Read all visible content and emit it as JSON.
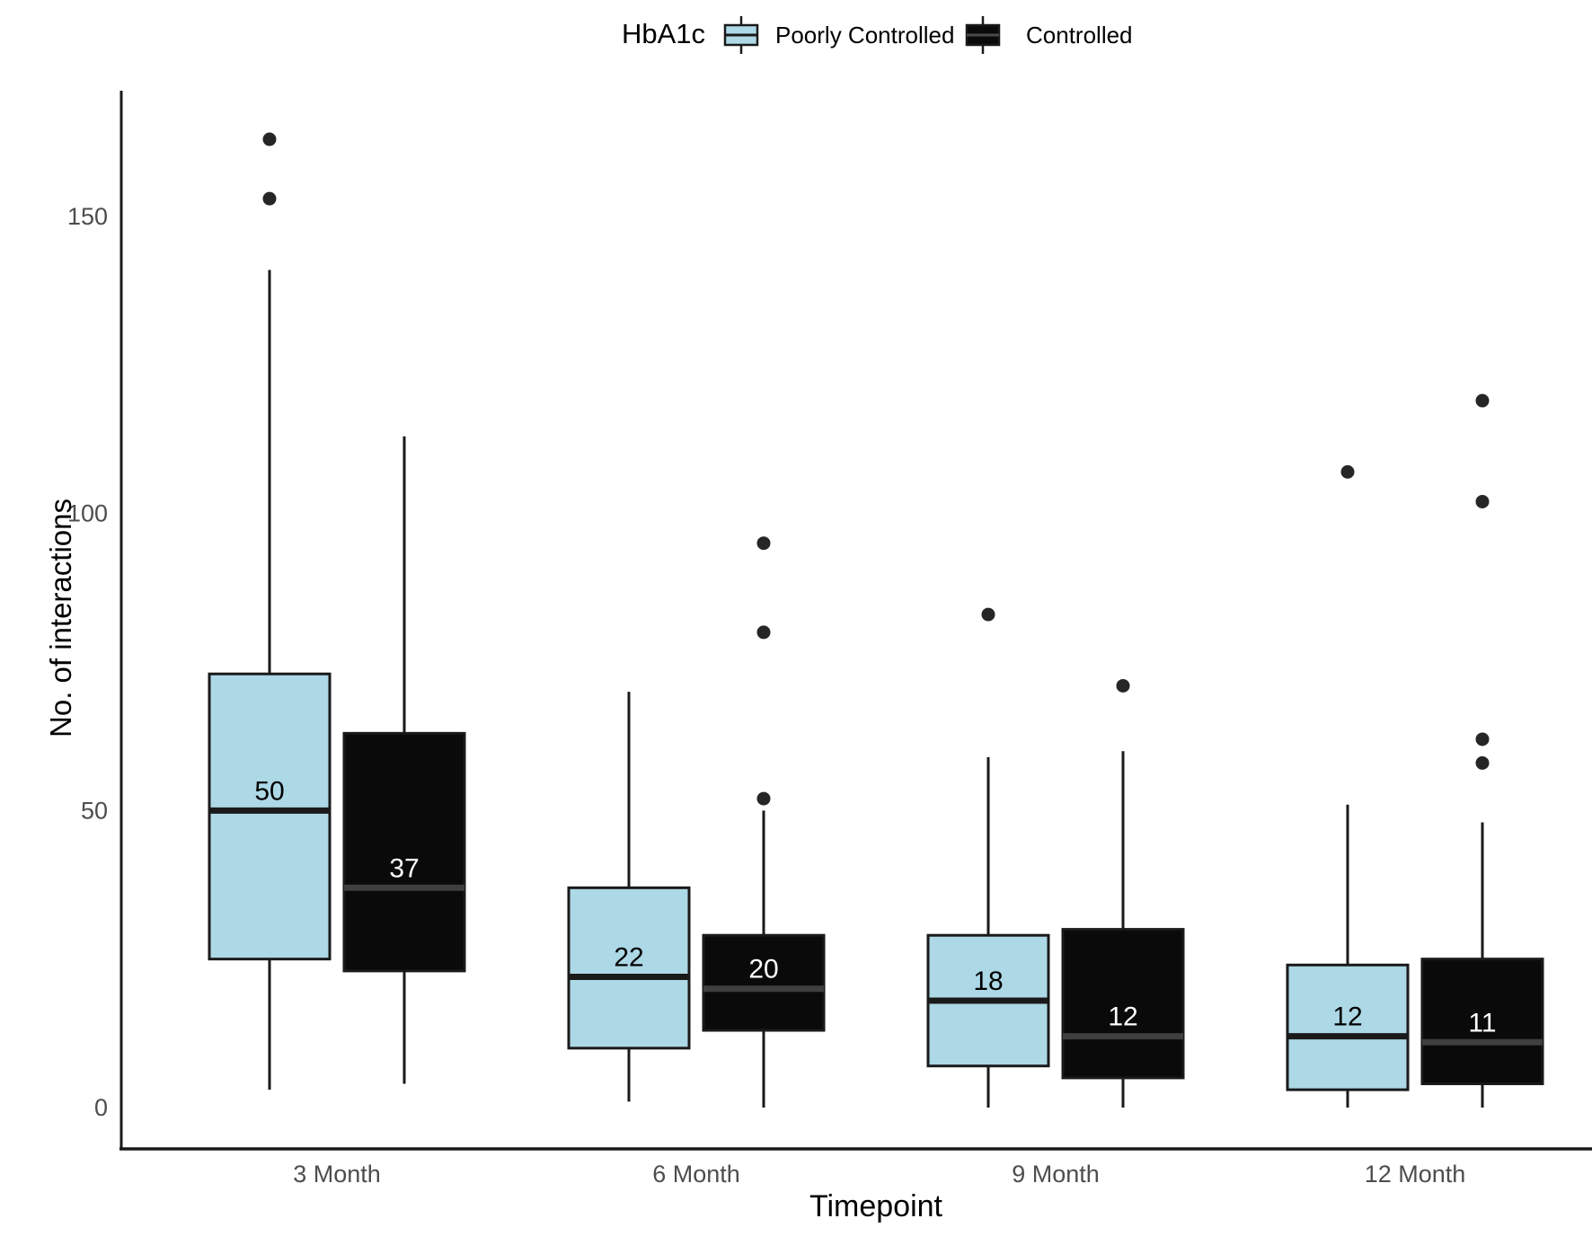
{
  "chart_data": {
    "type": "boxplot",
    "title": "",
    "xlabel": "Timepoint",
    "ylabel": "No. of interactions",
    "legend_title": "HbA1c",
    "legend_position": "top",
    "categories": [
      "3 Month",
      "6 Month",
      "9 Month",
      "12 Month"
    ],
    "yticks": [
      0,
      50,
      100,
      150
    ],
    "ylim": [
      0,
      165
    ],
    "grid": false,
    "colors": {
      "box_outline": "#1a1a1a",
      "axis_line": "#1a1a1a",
      "tick_label": "#4d4d4d",
      "outlier_dot": "#262626",
      "median_line_on_blue": "#1a1a1a",
      "median_line_on_black": "#3f3f3f"
    },
    "series": [
      {
        "name": "Poorly Controlled",
        "color": "#ADD8E6",
        "median_label_color": "#000000",
        "boxes": [
          {
            "category": "3 Month",
            "whisker_low": 3,
            "q1": 25,
            "median": 50,
            "q3": 73,
            "whisker_high": 141,
            "outliers": [
              153,
              163
            ]
          },
          {
            "category": "6 Month",
            "whisker_low": 1,
            "q1": 10,
            "median": 22,
            "q3": 37,
            "whisker_high": 70,
            "outliers": []
          },
          {
            "category": "9 Month",
            "whisker_low": 0,
            "q1": 7,
            "median": 18,
            "q3": 29,
            "whisker_high": 59,
            "outliers": [
              83
            ]
          },
          {
            "category": "12 Month",
            "whisker_low": 0,
            "q1": 3,
            "median": 12,
            "q3": 24,
            "whisker_high": 51,
            "outliers": [
              107
            ]
          }
        ]
      },
      {
        "name": "Controlled",
        "color": "#0a0a0a",
        "median_label_color": "#ffffff",
        "boxes": [
          {
            "category": "3 Month",
            "whisker_low": 4,
            "q1": 23,
            "median": 37,
            "q3": 63,
            "whisker_high": 113,
            "outliers": []
          },
          {
            "category": "6 Month",
            "whisker_low": 0,
            "q1": 13,
            "median": 20,
            "q3": 29,
            "whisker_high": 50,
            "outliers": [
              52,
              80,
              95
            ]
          },
          {
            "category": "9 Month",
            "whisker_low": 0,
            "q1": 5,
            "median": 12,
            "q3": 30,
            "whisker_high": 60,
            "outliers": [
              71
            ]
          },
          {
            "category": "12 Month",
            "whisker_low": 0,
            "q1": 4,
            "median": 11,
            "q3": 25,
            "whisker_high": 48,
            "outliers": [
              58,
              62,
              102,
              119
            ]
          }
        ]
      }
    ],
    "median_labels": [
      50,
      37,
      22,
      20,
      18,
      12,
      12,
      11
    ]
  }
}
